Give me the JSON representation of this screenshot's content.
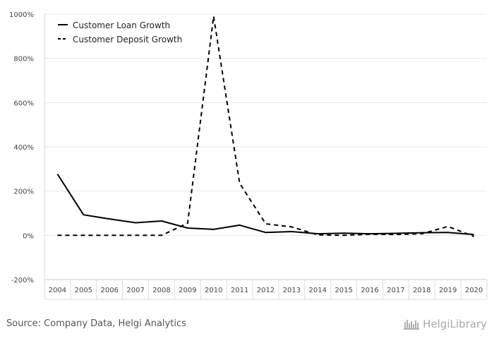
{
  "chart_data": {
    "type": "line",
    "title": "",
    "xlabel": "",
    "ylabel": "",
    "categories": [
      "2004",
      "2005",
      "2006",
      "2007",
      "2008",
      "2009",
      "2010",
      "2011",
      "2012",
      "2013",
      "2014",
      "2015",
      "2016",
      "2017",
      "2018",
      "2019",
      "2020"
    ],
    "ylim": [
      -200,
      1000
    ],
    "yticks": [
      -200,
      0,
      200,
      400,
      600,
      800,
      1000
    ],
    "ytick_labels": [
      "-200%",
      "0%",
      "200%",
      "400%",
      "600%",
      "800%",
      "1000%"
    ],
    "grid": "horizontal",
    "legend_position": "top-left",
    "series": [
      {
        "name": "Customer Loan Growth",
        "style": "solid",
        "color": "#000000",
        "values": [
          277,
          93,
          74,
          57,
          65,
          33,
          27,
          46,
          13,
          17,
          7,
          10,
          7,
          9,
          12,
          13,
          4
        ]
      },
      {
        "name": "Customer Deposit Growth",
        "style": "dashed",
        "color": "#000000",
        "values": [
          0,
          0,
          0,
          0,
          0,
          55,
          990,
          235,
          52,
          38,
          2,
          0,
          5,
          4,
          7,
          40,
          -5
        ]
      }
    ]
  },
  "footer": {
    "source": "Source: Company Data, Helgi Analytics",
    "brand": "HelgiLibrary"
  },
  "icons": {
    "brand_logo": "helgi-library-logo-icon"
  }
}
